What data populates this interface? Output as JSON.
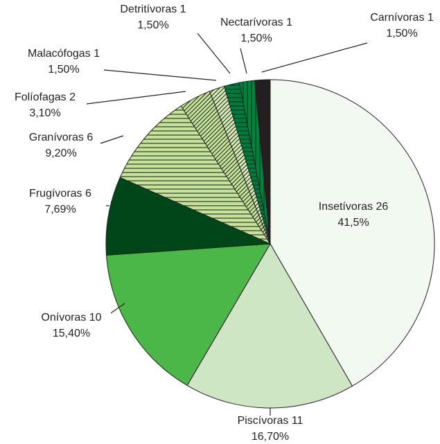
{
  "chart_data": {
    "type": "pie",
    "categories": [
      "Insetívoras",
      "Piscívoras",
      "Onívoras",
      "Frugívoras",
      "Granívoras",
      "Folíofagas",
      "Malacófogas",
      "Detritívoras",
      "Nectarívoras",
      "Carnívoras"
    ],
    "counts": [
      26,
      11,
      10,
      6,
      6,
      2,
      1,
      1,
      1,
      1
    ],
    "values": [
      41.5,
      16.7,
      15.4,
      7.69,
      9.2,
      3.1,
      1.5,
      1.5,
      1.5,
      1.5
    ],
    "value_labels": [
      "41,5%",
      "16,70%",
      "15,40%",
      "7,69%",
      "9,20%",
      "3,10%",
      "1,50%",
      "1,50%",
      "1,50%",
      "1,50%"
    ],
    "colors": [
      "#f2f9f1",
      "#cfe6c4",
      "#4bb749",
      "#004618",
      "#c8e29c",
      "#c8e29c",
      "#d9ecb8",
      "#007a3d",
      "#00843d",
      "#231f20"
    ],
    "hatches": [
      null,
      null,
      null,
      null,
      "horizontal",
      "diagonal",
      "diagonal",
      "horizontal",
      "vertical",
      null
    ]
  }
}
